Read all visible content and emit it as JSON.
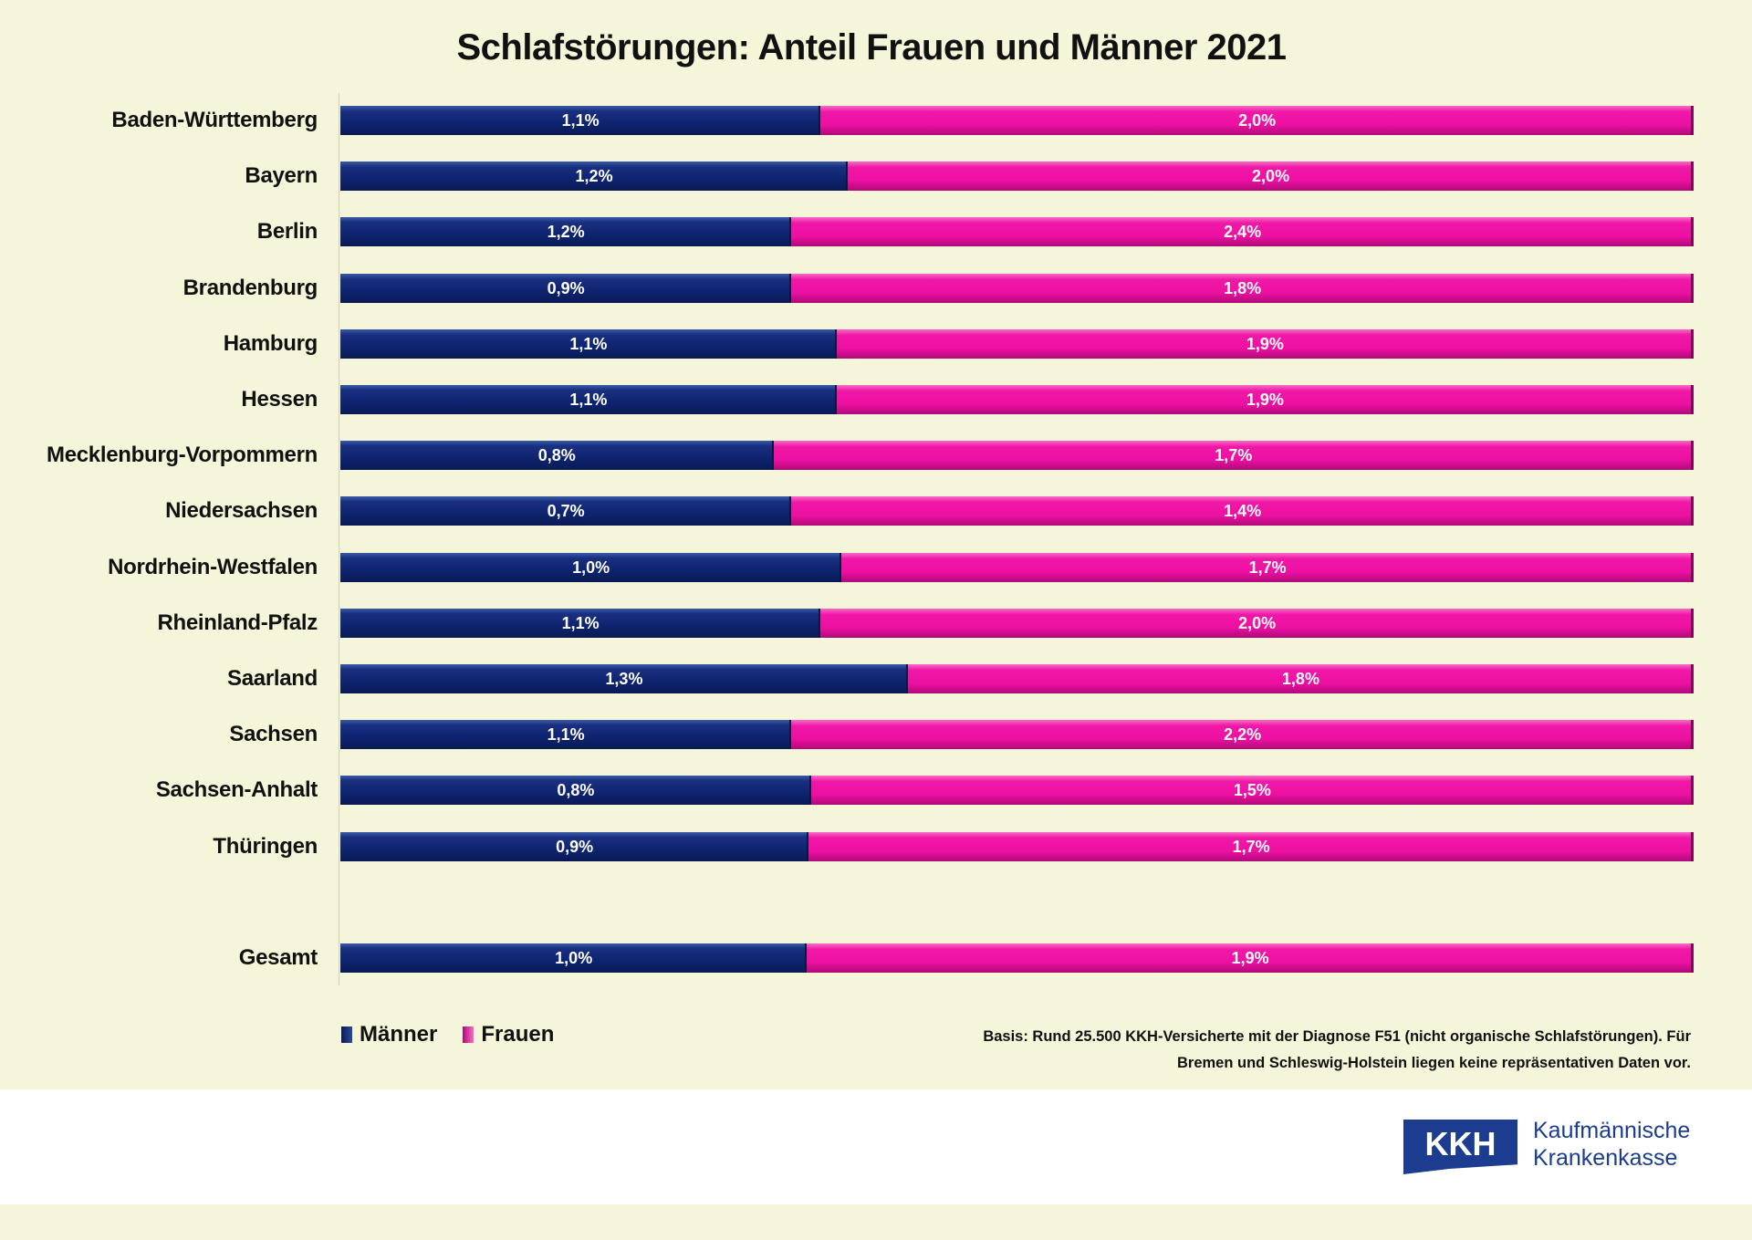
{
  "chart_data": {
    "type": "bar",
    "stacked": "100%",
    "orientation": "horizontal",
    "title": "Schlafstörungen: Anteil Frauen und Männer 2021",
    "categories": [
      "Baden-Württemberg",
      "Bayern",
      "Berlin",
      "Brandenburg",
      "Hamburg",
      "Hessen",
      "Mecklenburg-Vorpommern",
      "Niedersachsen",
      "Nordrhein-Westfalen",
      "Rheinland-Pfalz",
      "Saarland",
      "Sachsen",
      "Sachsen-Anhalt",
      "Thüringen",
      "Gesamt"
    ],
    "series": [
      {
        "name": "Männer",
        "color": "#0e2470",
        "values": [
          1.1,
          1.2,
          1.2,
          0.9,
          1.1,
          1.1,
          0.8,
          0.7,
          1.0,
          1.1,
          1.3,
          1.1,
          0.8,
          0.9,
          1.0
        ],
        "labels": [
          "1,1%",
          "1,2%",
          "1,2%",
          "0,9%",
          "1,1%",
          "1,1%",
          "0,8%",
          "0,7%",
          "1,0%",
          "1,1%",
          "1,3%",
          "1,1%",
          "0,8%",
          "0,9%",
          "1,0%"
        ]
      },
      {
        "name": "Frauen",
        "color": "#ee10a2",
        "values": [
          2.0,
          2.0,
          2.4,
          1.8,
          1.9,
          1.9,
          1.7,
          1.4,
          1.7,
          2.0,
          1.8,
          2.2,
          1.5,
          1.7,
          1.9
        ],
        "labels": [
          "2,0%",
          "2,0%",
          "2,4%",
          "1,8%",
          "1,9%",
          "1,9%",
          "1,7%",
          "1,4%",
          "1,7%",
          "2,0%",
          "1,8%",
          "2,2%",
          "1,5%",
          "1,7%",
          "1,9%"
        ]
      }
    ],
    "legend": "bottom-left",
    "grid": false
  },
  "footnote": {
    "line1": "Basis: Rund 25.500 KKH-Versicherte mit der Diagnose F51 (nicht organische Schlafstörungen). Für",
    "line2": "Bremen und Schleswig-Holstein liegen keine repräsentativen Daten vor."
  },
  "logo": {
    "mark": "KKH",
    "line1": "Kaufmännische",
    "line2": "Krankenkasse"
  }
}
